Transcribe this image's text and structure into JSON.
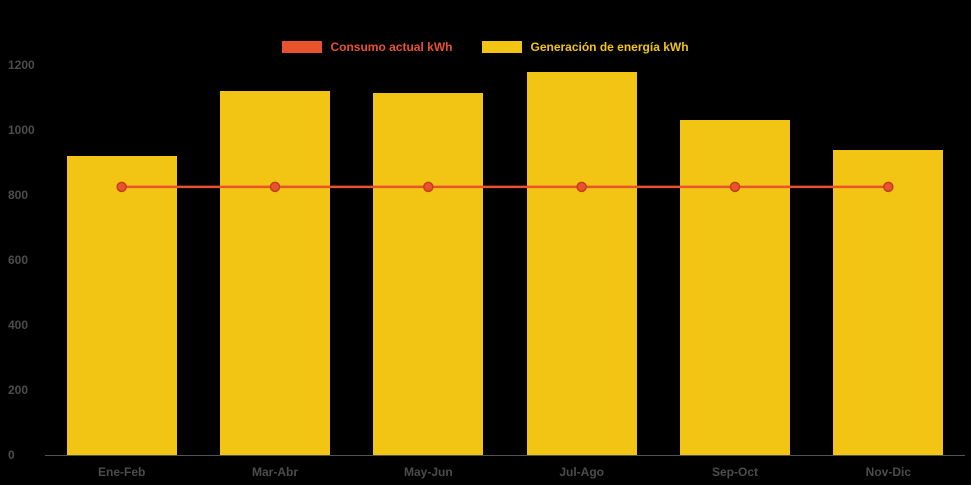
{
  "page": {
    "background_color": "#000000"
  },
  "legend": {
    "position": "top",
    "items": [
      {
        "label": "Consumo actual kWh",
        "color": "#e8532e"
      },
      {
        "label": "Generación de energía kWh",
        "color": "#f2c413"
      }
    ]
  },
  "axis": {
    "tick_color": "#4c4c4c",
    "label_color": "#4c4c4c",
    "baseline_color": "rgba(204,204,204,0.4)"
  },
  "chart_data": {
    "type": "bar",
    "title": "",
    "xlabel": "",
    "ylabel": "",
    "categories": [
      "Ene-Feb",
      "Mar-Abr",
      "May-Jun",
      "Jul-Ago",
      "Sep-Oct",
      "Nov-Dic"
    ],
    "series": [
      {
        "name": "Consumo actual kWh",
        "type": "line",
        "color": "#e8532e",
        "marker_stroke": "#c2401f",
        "values": [
          825,
          825,
          825,
          825,
          825,
          825
        ]
      },
      {
        "name": "Generación de energía kWh",
        "type": "bar",
        "color": "#f2c413",
        "values": [
          920,
          1120,
          1115,
          1180,
          1030,
          940
        ]
      }
    ],
    "ylim": [
      0,
      1200
    ],
    "yticks": [
      0,
      200,
      400,
      600,
      800,
      1000,
      1200
    ],
    "grid": false,
    "legend_position": "top"
  }
}
